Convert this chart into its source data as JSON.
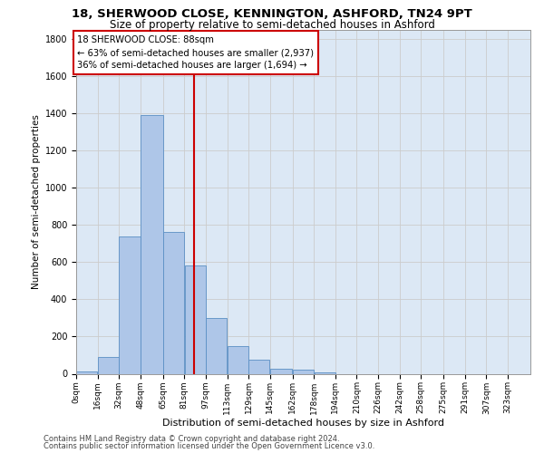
{
  "title_line1": "18, SHERWOOD CLOSE, KENNINGTON, ASHFORD, TN24 9PT",
  "title_line2": "Size of property relative to semi-detached houses in Ashford",
  "xlabel": "Distribution of semi-detached houses by size in Ashford",
  "ylabel": "Number of semi-detached properties",
  "footer_line1": "Contains HM Land Registry data © Crown copyright and database right 2024.",
  "footer_line2": "Contains public sector information licensed under the Open Government Licence v3.0.",
  "annotation_title": "18 SHERWOOD CLOSE: 88sqm",
  "annotation_line1": "← 63% of semi-detached houses are smaller (2,937)",
  "annotation_line2": "36% of semi-detached houses are larger (1,694) →",
  "bar_left_edges": [
    0,
    16,
    32,
    48,
    65,
    81,
    97,
    113,
    129,
    145,
    162,
    178,
    194,
    210,
    226,
    242,
    258,
    275,
    291,
    307
  ],
  "bar_widths": [
    16,
    16,
    16,
    17,
    16,
    16,
    16,
    16,
    16,
    17,
    16,
    16,
    16,
    16,
    16,
    16,
    17,
    16,
    16,
    16
  ],
  "bar_heights": [
    10,
    90,
    740,
    1390,
    760,
    580,
    300,
    150,
    75,
    25,
    20,
    5,
    0,
    0,
    0,
    0,
    0,
    0,
    0,
    0
  ],
  "tick_labels": [
    "0sqm",
    "16sqm",
    "32sqm",
    "48sqm",
    "65sqm",
    "81sqm",
    "97sqm",
    "113sqm",
    "129sqm",
    "145sqm",
    "162sqm",
    "178sqm",
    "194sqm",
    "210sqm",
    "226sqm",
    "242sqm",
    "258sqm",
    "275sqm",
    "291sqm",
    "307sqm",
    "323sqm"
  ],
  "bar_color": "#aec6e8",
  "bar_edge_color": "#5a8fc4",
  "vline_color": "#cc0000",
  "vline_x": 88,
  "ylim": [
    0,
    1850
  ],
  "xlim": [
    0,
    340
  ],
  "grid_color": "#cccccc",
  "background_color": "#dce8f5",
  "annotation_box_color": "#ffffff",
  "annotation_box_edge": "#cc0000",
  "title1_fontsize": 9.5,
  "title2_fontsize": 8.5,
  "ylabel_fontsize": 7.5,
  "xlabel_fontsize": 8,
  "tick_fontsize": 6.5,
  "ann_fontsize": 7.2,
  "footer_fontsize": 6
}
